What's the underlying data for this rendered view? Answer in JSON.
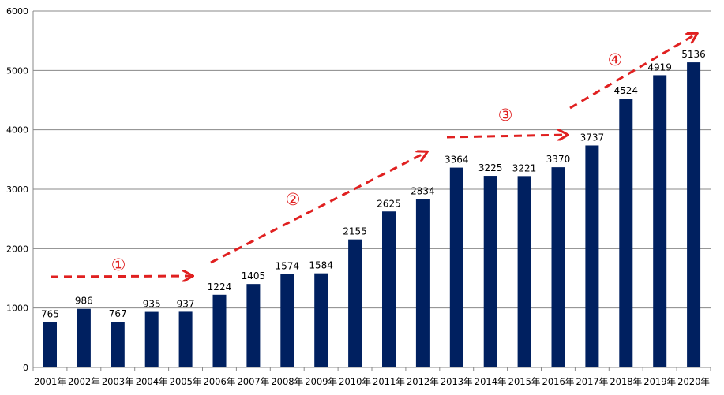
{
  "chart_data": {
    "type": "bar",
    "categories": [
      "2001年",
      "2002年",
      "2003年",
      "2004年",
      "2005年",
      "2006年",
      "2007年",
      "2008年",
      "2009年",
      "2010年",
      "2011年",
      "2012年",
      "2013年",
      "2014年",
      "2015年",
      "2016年",
      "2017年",
      "2018年",
      "2019年",
      "2020年"
    ],
    "values": [
      765,
      986,
      767,
      935,
      937,
      1224,
      1405,
      1574,
      1584,
      2155,
      2625,
      2834,
      3364,
      3225,
      3221,
      3370,
      3737,
      4524,
      4919,
      5136
    ],
    "ylim": [
      0,
      6000
    ],
    "yticks": [
      0,
      1000,
      2000,
      3000,
      4000,
      5000,
      6000
    ],
    "grid": true,
    "bar_color": "#002060",
    "annotation_color": "#e02020",
    "annotations": [
      {
        "label": "①",
        "from": "2001年",
        "to": "2005年"
      },
      {
        "label": "②",
        "from": "2006年",
        "to": "2012年"
      },
      {
        "label": "③",
        "from": "2013年",
        "to": "2016年"
      },
      {
        "label": "④",
        "from": "2017年",
        "to": "2020年"
      }
    ]
  }
}
